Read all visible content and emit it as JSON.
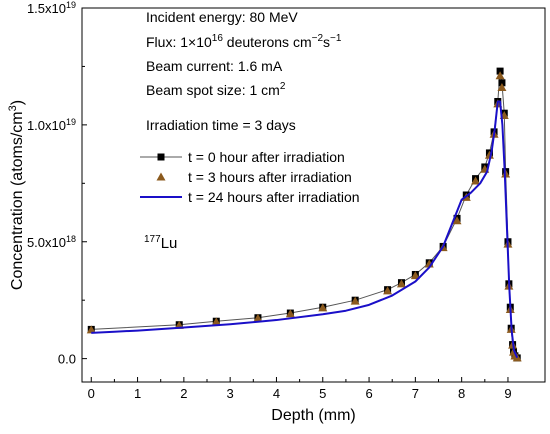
{
  "chart_data": {
    "type": "line",
    "xlabel": "Depth (mm)",
    "ylabel_main": "Concentration (atoms/cm",
    "ylabel_sup": "3",
    "ylabel_tail": ")",
    "xlim": [
      -0.2,
      9.8
    ],
    "ylim": [
      -1e+18,
      1.5e+19
    ],
    "x_ticks": [
      0,
      1,
      2,
      3,
      4,
      5,
      6,
      7,
      8,
      9
    ],
    "y_ticks": [
      {
        "value": 0,
        "mantissa": "0.0",
        "exp": ""
      },
      {
        "value": 5e+18,
        "mantissa": "5.0x10",
        "exp": "18"
      },
      {
        "value": 1e+19,
        "mantissa": "1.0x10",
        "exp": "19"
      },
      {
        "value": 1.5e+19,
        "mantissa": "1.5x10",
        "exp": "19"
      }
    ],
    "annotations": [
      {
        "parts": [
          {
            "t": "Incident energy: 80 MeV"
          }
        ]
      },
      {
        "parts": [
          {
            "t": "Flux: 1×10"
          },
          {
            "t": "16",
            "sup": true
          },
          {
            "t": " deuterons cm"
          },
          {
            "t": "−2",
            "sup": true
          },
          {
            "t": "s"
          },
          {
            "t": "−1",
            "sup": true
          }
        ]
      },
      {
        "parts": [
          {
            "t": "Beam current: 1.6 mA"
          }
        ]
      },
      {
        "parts": [
          {
            "t": "Beam spot size: 1 cm"
          },
          {
            "t": "2",
            "sup": true
          }
        ]
      },
      {
        "parts": [
          {
            "t": "Irradiation time = 3 days"
          }
        ]
      }
    ],
    "isotope_label": {
      "sup": "177",
      "main": "Lu"
    },
    "series": [
      {
        "name": "t = 0 hour after irradiation",
        "style": "square-line",
        "color": "#000000",
        "line_color": "#555555",
        "x": [
          0,
          1.9,
          2.7,
          3.6,
          4.3,
          5.0,
          5.7,
          6.4,
          6.7,
          7.0,
          7.3,
          7.6,
          7.9,
          8.1,
          8.3,
          8.5,
          8.6,
          8.7,
          8.78,
          8.83,
          8.87,
          8.92,
          8.95,
          9.0,
          9.02,
          9.05,
          9.07,
          9.1,
          9.12,
          9.15,
          9.2
        ],
        "y": [
          1.25e+18,
          1.45e+18,
          1.6e+18,
          1.75e+18,
          1.95e+18,
          2.2e+18,
          2.5e+18,
          2.95e+18,
          3.25e+18,
          3.6e+18,
          4.1e+18,
          4.8e+18,
          6e+18,
          7e+18,
          7.7e+18,
          8.2e+18,
          8.8e+18,
          9.7e+18,
          1.1e+19,
          1.23e+19,
          1.18e+19,
          1.05e+19,
          8e+18,
          5e+18,
          3.2e+18,
          2.2e+18,
          1.3e+18,
          6e+17,
          3e+17,
          1.2e+17,
          3e+16
        ]
      },
      {
        "name": "t = 3 hours after irradiation",
        "style": "triangle",
        "color": "#8B5A1E",
        "x": [
          0,
          1.9,
          2.7,
          3.6,
          4.3,
          5.0,
          5.7,
          6.4,
          6.7,
          7.0,
          7.3,
          7.6,
          7.9,
          8.1,
          8.3,
          8.5,
          8.6,
          8.7,
          8.78,
          8.83,
          8.87,
          8.92,
          8.95,
          9.0,
          9.02,
          9.05,
          9.07,
          9.1,
          9.12,
          9.15,
          9.2
        ],
        "y": [
          1.23e+18,
          1.42e+18,
          1.57e+18,
          1.72e+18,
          1.92e+18,
          2.17e+18,
          2.46e+18,
          2.9e+18,
          3.2e+18,
          3.55e+18,
          4.05e+18,
          4.75e+18,
          5.9e+18,
          6.9e+18,
          7.6e+18,
          8.1e+18,
          8.7e+18,
          9.6e+18,
          1.09e+19,
          1.21e+19,
          1.16e+19,
          1.04e+19,
          7.9e+18,
          4.9e+18,
          3.1e+18,
          2.1e+18,
          1.25e+18,
          5.8e+17,
          2.8e+17,
          1.1e+17,
          3e+16
        ]
      },
      {
        "name": "t = 24 hours after irradiation",
        "style": "line",
        "color": "#1a0fc8",
        "x": [
          0,
          0.5,
          1,
          2,
          3,
          4,
          5,
          5.5,
          6,
          6.5,
          7,
          7.3,
          7.6,
          7.8,
          8.0,
          8.2,
          8.4,
          8.55,
          8.65,
          8.72,
          8.78,
          8.83,
          8.88,
          8.93,
          8.98,
          9.03,
          9.08,
          9.13,
          9.2
        ],
        "y": [
          1.1e+18,
          1.15e+18,
          1.2e+18,
          1.33e+18,
          1.47e+18,
          1.65e+18,
          1.9e+18,
          2.05e+18,
          2.3e+18,
          2.7e+18,
          3.3e+18,
          3.9e+18,
          4.8e+18,
          5.8e+18,
          6.8e+18,
          7.1e+18,
          7.5e+18,
          8e+18,
          8.9e+18,
          9.9e+18,
          1.1e+19,
          1.1e+19,
          1e+19,
          8e+18,
          5.5e+18,
          3e+18,
          1.2e+18,
          3.5e+17,
          4e+16
        ]
      }
    ]
  }
}
